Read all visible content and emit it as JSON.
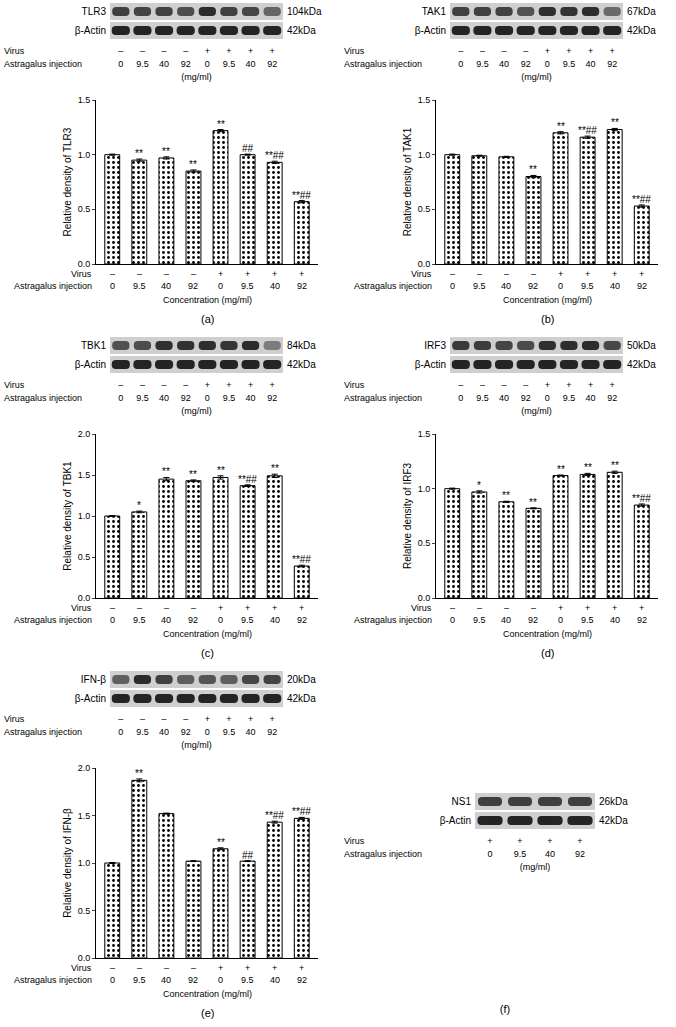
{
  "chart_data": [
    {
      "type": "bar",
      "panel_label": "(a)",
      "blot": {
        "target": "TLR3",
        "target_size": "104kDa",
        "control": "β-Actin",
        "control_size": "42kDa",
        "row_labels": [
          "Virus",
          "Astragalus injection"
        ],
        "virus": [
          "–",
          "–",
          "–",
          "–",
          "+",
          "+",
          "+",
          "+"
        ],
        "concentrations": [
          "0",
          "9.5",
          "40",
          "92",
          "0",
          "9.5",
          "40",
          "92"
        ],
        "unit": "(mg/ml)"
      },
      "row_labels": [
        "Virus",
        "Astragalus injection"
      ],
      "virus": [
        "–",
        "–",
        "–",
        "–",
        "+",
        "+",
        "+",
        "+"
      ],
      "categories": [
        "0",
        "9.5",
        "40",
        "92",
        "0",
        "9.5",
        "40",
        "92"
      ],
      "xlabel": "Concentration (mg/ml)",
      "ylabel": "Relative density of TLR3",
      "values": [
        1.0,
        0.95,
        0.97,
        0.85,
        1.22,
        1.0,
        0.93,
        0.57
      ],
      "errors": [
        0.005,
        0.01,
        0.01,
        0.01,
        0.01,
        0.005,
        0.01,
        0.01
      ],
      "annotations": [
        null,
        "**",
        "**",
        "**",
        "**",
        "##",
        "**##",
        "**##"
      ],
      "color": "#ffffff",
      "marker": "dots",
      "ylim": [
        0,
        1.5
      ],
      "yticks": [
        {
          "value": 0,
          "label": "0.0"
        },
        0.5,
        {
          "value": 1,
          "label": "1.0"
        },
        1.5
      ]
    },
    {
      "type": "bar",
      "panel_label": "(b)",
      "blot": {
        "target": "TAK1",
        "target_size": "67kDa",
        "control": "β-Actin",
        "control_size": "42kDa",
        "row_labels": [
          "Virus",
          "Astragalus injection"
        ],
        "virus": [
          "–",
          "–",
          "–",
          "–",
          "+",
          "+",
          "+",
          "+"
        ],
        "concentrations": [
          "0",
          "9.5",
          "40",
          "92",
          "0",
          "9.5",
          "40",
          "92"
        ],
        "unit": "(mg/ml)"
      },
      "row_labels": [
        "Virus",
        "Astragalus injection"
      ],
      "virus": [
        "–",
        "–",
        "–",
        "–",
        "+",
        "+",
        "+",
        "+"
      ],
      "categories": [
        "0",
        "9.5",
        "40",
        "92",
        "0",
        "9.5",
        "40",
        "92"
      ],
      "xlabel": "Concentration (mg/ml)",
      "ylabel": "Relative density of TAK1",
      "values": [
        1.0,
        0.99,
        0.98,
        0.8,
        1.2,
        1.16,
        1.23,
        0.53
      ],
      "errors": [
        0.005,
        0.005,
        0.005,
        0.01,
        0.01,
        0.01,
        0.01,
        0.01
      ],
      "annotations": [
        null,
        null,
        null,
        "**",
        "**",
        "**##",
        "**",
        "**##"
      ],
      "color": "#ffffff",
      "marker": "dots",
      "ylim": [
        0,
        1.5
      ],
      "yticks": [
        {
          "value": 0,
          "label": "0.0"
        },
        0.5,
        {
          "value": 1,
          "label": "1.0"
        },
        1.5
      ]
    },
    {
      "type": "bar",
      "panel_label": "(c)",
      "blot": {
        "target": "TBK1",
        "target_size": "84kDa",
        "control": "β-Actin",
        "control_size": "42kDa",
        "row_labels": [
          "Virus",
          "Astragalus injection"
        ],
        "virus": [
          "–",
          "–",
          "–",
          "–",
          "+",
          "+",
          "+",
          "+"
        ],
        "concentrations": [
          "0",
          "9.5",
          "40",
          "92",
          "0",
          "9.5",
          "40",
          "92"
        ],
        "unit": "(mg/ml)"
      },
      "row_labels": [
        "Virus",
        "Astragalus injection"
      ],
      "virus": [
        "–",
        "–",
        "–",
        "–",
        "+",
        "+",
        "+",
        "+"
      ],
      "categories": [
        "0",
        "9.5",
        "40",
        "92",
        "0",
        "9.5",
        "40",
        "92"
      ],
      "xlabel": "Concentration (mg/ml)",
      "ylabel": "Relative density of TBK1",
      "values": [
        1.0,
        1.05,
        1.45,
        1.43,
        1.47,
        1.37,
        1.49,
        0.39
      ],
      "errors": [
        0.005,
        0.01,
        0.02,
        0.01,
        0.02,
        0.01,
        0.02,
        0.01
      ],
      "annotations": [
        null,
        "*",
        "**",
        "**",
        "**",
        "**##",
        "**",
        "**##"
      ],
      "color": "#ffffff",
      "marker": "dots",
      "ylim": [
        0,
        2.0
      ],
      "yticks": [
        {
          "value": 0,
          "label": "0.0"
        },
        0.5,
        {
          "value": 1,
          "label": "1.0"
        },
        1.5,
        {
          "value": 2,
          "label": "2.0"
        }
      ]
    },
    {
      "type": "bar",
      "panel_label": "(d)",
      "blot": {
        "target": "IRF3",
        "target_size": "50kDa",
        "control": "β-Actin",
        "control_size": "42kDa",
        "row_labels": [
          "Virus",
          "Astragalus injection"
        ],
        "virus": [
          "–",
          "–",
          "–",
          "–",
          "+",
          "+",
          "+",
          "+"
        ],
        "concentrations": [
          "0",
          "9.5",
          "40",
          "92",
          "0",
          "9.5",
          "40",
          "92"
        ],
        "unit": "(mg/ml)"
      },
      "row_labels": [
        "Virus",
        "Astragalus injection"
      ],
      "virus": [
        "–",
        "–",
        "–",
        "–",
        "+",
        "+",
        "+",
        "+"
      ],
      "categories": [
        "0",
        "9.5",
        "40",
        "92",
        "0",
        "9.5",
        "40",
        "92"
      ],
      "xlabel": "Concentration (mg/ml)",
      "ylabel": "Relative density of IRF3",
      "values": [
        1.0,
        0.97,
        0.88,
        0.82,
        1.12,
        1.13,
        1.15,
        0.85
      ],
      "errors": [
        0.005,
        0.01,
        0.005,
        0.005,
        0.005,
        0.01,
        0.01,
        0.01
      ],
      "annotations": [
        null,
        "*",
        "**",
        "**",
        "**",
        "**",
        "**",
        "**##"
      ],
      "color": "#ffffff",
      "marker": "dots",
      "ylim": [
        0,
        1.5
      ],
      "yticks": [
        {
          "value": 0,
          "label": "0.0"
        },
        0.5,
        {
          "value": 1,
          "label": "1.0"
        },
        1.5
      ]
    },
    {
      "type": "bar",
      "panel_label": "(e)",
      "blot": {
        "target": "IFN-β",
        "target_size": "20kDa",
        "control": "β-Actin",
        "control_size": "42kDa",
        "row_labels": [
          "Virus",
          "Astragalus injection"
        ],
        "virus": [
          "–",
          "–",
          "–",
          "–",
          "+",
          "+",
          "+",
          "+"
        ],
        "concentrations": [
          "0",
          "9.5",
          "40",
          "92",
          "0",
          "9.5",
          "40",
          "92"
        ],
        "unit": "(mg/ml)"
      },
      "row_labels": [
        "Virus",
        "Astragalus injection"
      ],
      "virus": [
        "–",
        "–",
        "–",
        "–",
        "+",
        "+",
        "+",
        "+"
      ],
      "categories": [
        "0",
        "9.5",
        "40",
        "92",
        "0",
        "9.5",
        "40",
        "92"
      ],
      "xlabel": "Concentration (mg/ml)",
      "ylabel": "Relative density of IFN-β",
      "values": [
        1.0,
        1.87,
        1.52,
        1.02,
        1.15,
        1.02,
        1.43,
        1.47
      ],
      "errors": [
        0.005,
        0.015,
        0.005,
        0.005,
        0.01,
        0.005,
        0.01,
        0.01
      ],
      "annotations": [
        null,
        "**",
        null,
        null,
        "**",
        "##",
        "**##",
        "**##"
      ],
      "color": "#ffffff",
      "marker": "dots",
      "ylim": [
        0,
        2.0
      ],
      "yticks": [
        {
          "value": 0,
          "label": "0.0"
        },
        0.5,
        {
          "value": 1,
          "label": "1.0"
        },
        1.5,
        {
          "value": 2,
          "label": "2.0"
        }
      ]
    }
  ],
  "blot_only": [
    {
      "panel_label": "(f)",
      "blot": {
        "target": "NS1",
        "target_size": "26kDa",
        "control": "β-Actin",
        "control_size": "42kDa",
        "row_labels": [
          "Virus",
          "Astragalus injection"
        ],
        "virus": [
          "+",
          "+",
          "+",
          "+"
        ],
        "concentrations": [
          "0",
          "9.5",
          "40",
          "92"
        ],
        "unit": "(mg/ml)"
      }
    }
  ]
}
